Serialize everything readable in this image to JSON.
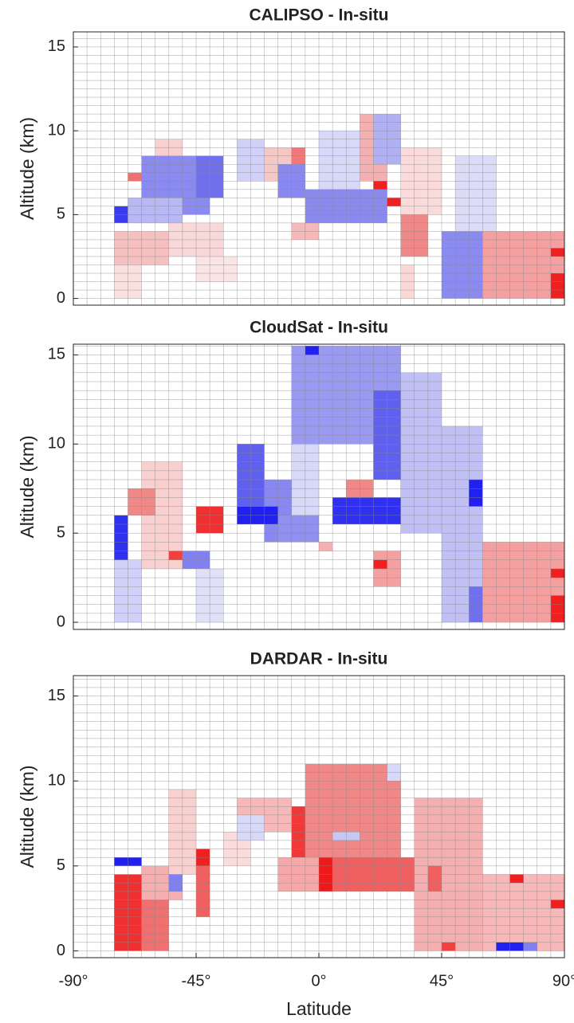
{
  "chart_data": [
    {
      "type": "heatmap",
      "title": "CALIPSO - In-situ",
      "ylabel": "Altitude (km)",
      "xlim": [
        -90,
        90
      ],
      "ylim": [
        -0.4,
        15.9
      ],
      "yticks": [
        0,
        5,
        10,
        15
      ],
      "grid": true,
      "cells": [
        [
          -75,
          -55,
          2,
          4,
          "#f6c0c0"
        ],
        [
          -75,
          -65,
          0,
          2,
          "#fbe0e0"
        ],
        [
          -65,
          -40,
          5,
          8.5,
          "#8a8af0"
        ],
        [
          -70,
          -50,
          4.5,
          6,
          "#b8b8f5"
        ],
        [
          -75,
          -70,
          4.5,
          5.5,
          "#3b3bf0"
        ],
        [
          -70,
          -65,
          7,
          7.5,
          "#f07070"
        ],
        [
          -60,
          -50,
          8.5,
          9.5,
          "#f8d0d0"
        ],
        [
          -45,
          -35,
          6,
          8.5,
          "#7070ee"
        ],
        [
          -55,
          -35,
          2.5,
          4.5,
          "#f8d8d8"
        ],
        [
          -45,
          -30,
          1,
          2.5,
          "#fbe4e4"
        ],
        [
          -30,
          -20,
          7,
          9.5,
          "#d0d0f8"
        ],
        [
          -20,
          -10,
          7,
          9,
          "#f5c8c8"
        ],
        [
          -15,
          -5,
          6,
          8,
          "#8888f0"
        ],
        [
          -10,
          -5,
          8,
          9,
          "#f07878"
        ],
        [
          -5,
          25,
          4.5,
          6.5,
          "#8a8aee"
        ],
        [
          -10,
          0,
          3.5,
          4.5,
          "#f6b8b8"
        ],
        [
          0,
          15,
          6.5,
          10,
          "#d8d8f8"
        ],
        [
          15,
          25,
          7,
          11,
          "#f4b0b0"
        ],
        [
          20,
          30,
          8,
          11,
          "#b0b0f2"
        ],
        [
          25,
          30,
          5.5,
          6,
          "#f02020"
        ],
        [
          20,
          25,
          6.5,
          7,
          "#f02020"
        ],
        [
          30,
          45,
          5,
          9,
          "#fadada"
        ],
        [
          30,
          40,
          2.5,
          5,
          "#f08888"
        ],
        [
          30,
          35,
          0,
          2,
          "#fad8d8"
        ],
        [
          50,
          65,
          4,
          8.5,
          "#dcdcf8"
        ],
        [
          45,
          60,
          0,
          4,
          "#8a8af0"
        ],
        [
          60,
          90,
          0,
          4,
          "#f4a0a0"
        ],
        [
          85,
          90,
          0,
          1.5,
          "#f02020"
        ],
        [
          85,
          90,
          2.5,
          3,
          "#f02020"
        ]
      ]
    },
    {
      "type": "heatmap",
      "title": "CloudSat - In-situ",
      "ylabel": "Altitude (km)",
      "xlim": [
        -90,
        90
      ],
      "ylim": [
        -0.4,
        15.6
      ],
      "yticks": [
        0,
        5,
        10,
        15
      ],
      "grid": true,
      "cells": [
        [
          -75,
          -65,
          0,
          3.5,
          "#d0d0f8"
        ],
        [
          -75,
          -70,
          3.5,
          6,
          "#3030f0"
        ],
        [
          -65,
          -50,
          3,
          9,
          "#f8d0d0"
        ],
        [
          -70,
          -60,
          6,
          7.5,
          "#f08888"
        ],
        [
          -55,
          -50,
          3.5,
          4,
          "#f04040"
        ],
        [
          -50,
          -40,
          3,
          4,
          "#8080f0"
        ],
        [
          -45,
          -35,
          5,
          6.5,
          "#f03030"
        ],
        [
          -45,
          -35,
          0,
          3,
          "#e0e0f8"
        ],
        [
          -30,
          -20,
          6.5,
          10,
          "#6060ee"
        ],
        [
          -20,
          -10,
          4.5,
          8,
          "#8888f0"
        ],
        [
          -30,
          -15,
          5.5,
          6.5,
          "#2020f0"
        ],
        [
          -10,
          0,
          6,
          10,
          "#d8d8f8"
        ],
        [
          -15,
          0,
          4.5,
          6,
          "#9090f0"
        ],
        [
          -10,
          30,
          10,
          15.5,
          "#9a9af0"
        ],
        [
          -5,
          0,
          15,
          15.5,
          "#2020f0"
        ],
        [
          30,
          45,
          5,
          14,
          "#c0c0f5"
        ],
        [
          20,
          30,
          8,
          13,
          "#6060ee"
        ],
        [
          5,
          30,
          5.5,
          7,
          "#3030f0"
        ],
        [
          10,
          20,
          7,
          8,
          "#f08888"
        ],
        [
          0,
          5,
          4,
          4.5,
          "#f4b0b0"
        ],
        [
          20,
          30,
          2,
          4,
          "#f4a0a0"
        ],
        [
          20,
          25,
          3,
          3.5,
          "#f02020"
        ],
        [
          45,
          60,
          0,
          11,
          "#c0c0f5"
        ],
        [
          55,
          60,
          6.5,
          8,
          "#2020f0"
        ],
        [
          55,
          60,
          0,
          2,
          "#7070ee"
        ],
        [
          60,
          90,
          0,
          4.5,
          "#f4a0a0"
        ],
        [
          85,
          90,
          0,
          1.5,
          "#f02020"
        ],
        [
          85,
          90,
          2.5,
          3,
          "#f02020"
        ]
      ]
    },
    {
      "type": "heatmap",
      "title": "DARDAR - In-situ",
      "ylabel": "Altitude (km)",
      "xlabel": "Latitude",
      "xlim": [
        -90,
        90
      ],
      "ylim": [
        -0.4,
        16.2
      ],
      "yticks": [
        0,
        5,
        10,
        15
      ],
      "grid": true,
      "xticks": [
        {
          "value": -90,
          "label": "-90°"
        },
        {
          "value": -45,
          "label": "-45°"
        },
        {
          "value": 0,
          "label": "0°"
        },
        {
          "value": 45,
          "label": "45°"
        },
        {
          "value": 90,
          "label": "90°"
        }
      ],
      "cells": [
        [
          -75,
          -65,
          0,
          4.5,
          "#f03030"
        ],
        [
          -75,
          -65,
          5,
          5.5,
          "#2020f0"
        ],
        [
          -65,
          -55,
          0,
          3,
          "#f07070"
        ],
        [
          -65,
          -50,
          3,
          5,
          "#f4b0b0"
        ],
        [
          -55,
          -45,
          4.5,
          9.5,
          "#f8d0d0"
        ],
        [
          -55,
          -50,
          3.5,
          4.5,
          "#8080f0"
        ],
        [
          -45,
          -40,
          2,
          5,
          "#f06060"
        ],
        [
          -45,
          -40,
          5,
          6,
          "#f02020"
        ],
        [
          -35,
          -25,
          5,
          7,
          "#fadcdc"
        ],
        [
          -30,
          -10,
          7,
          9,
          "#f6b8b8"
        ],
        [
          -30,
          -20,
          6.5,
          8,
          "#d8d8f8"
        ],
        [
          -5,
          30,
          5.5,
          11,
          "#f08888"
        ],
        [
          -10,
          -5,
          5.5,
          8.5,
          "#f03838"
        ],
        [
          -15,
          0,
          3.5,
          5.5,
          "#f6a8a8"
        ],
        [
          5,
          35,
          3.5,
          5.5,
          "#f06060"
        ],
        [
          0,
          5,
          3.5,
          5.5,
          "#f01818"
        ],
        [
          25,
          30,
          10,
          11,
          "#d8d8f8"
        ],
        [
          5,
          15,
          6.5,
          7,
          "#c8c8f5"
        ],
        [
          35,
          60,
          0,
          9,
          "#f4b0b0"
        ],
        [
          40,
          45,
          3.5,
          5,
          "#f06060"
        ],
        [
          45,
          50,
          0,
          0.5,
          "#f04040"
        ],
        [
          60,
          90,
          0,
          4.5,
          "#f6b8b8"
        ],
        [
          85,
          90,
          2.5,
          3,
          "#f02020"
        ],
        [
          70,
          75,
          4,
          4.5,
          "#f02020"
        ],
        [
          65,
          75,
          0,
          0.5,
          "#2020f0"
        ],
        [
          75,
          80,
          0,
          0.5,
          "#8080f0"
        ]
      ]
    }
  ]
}
